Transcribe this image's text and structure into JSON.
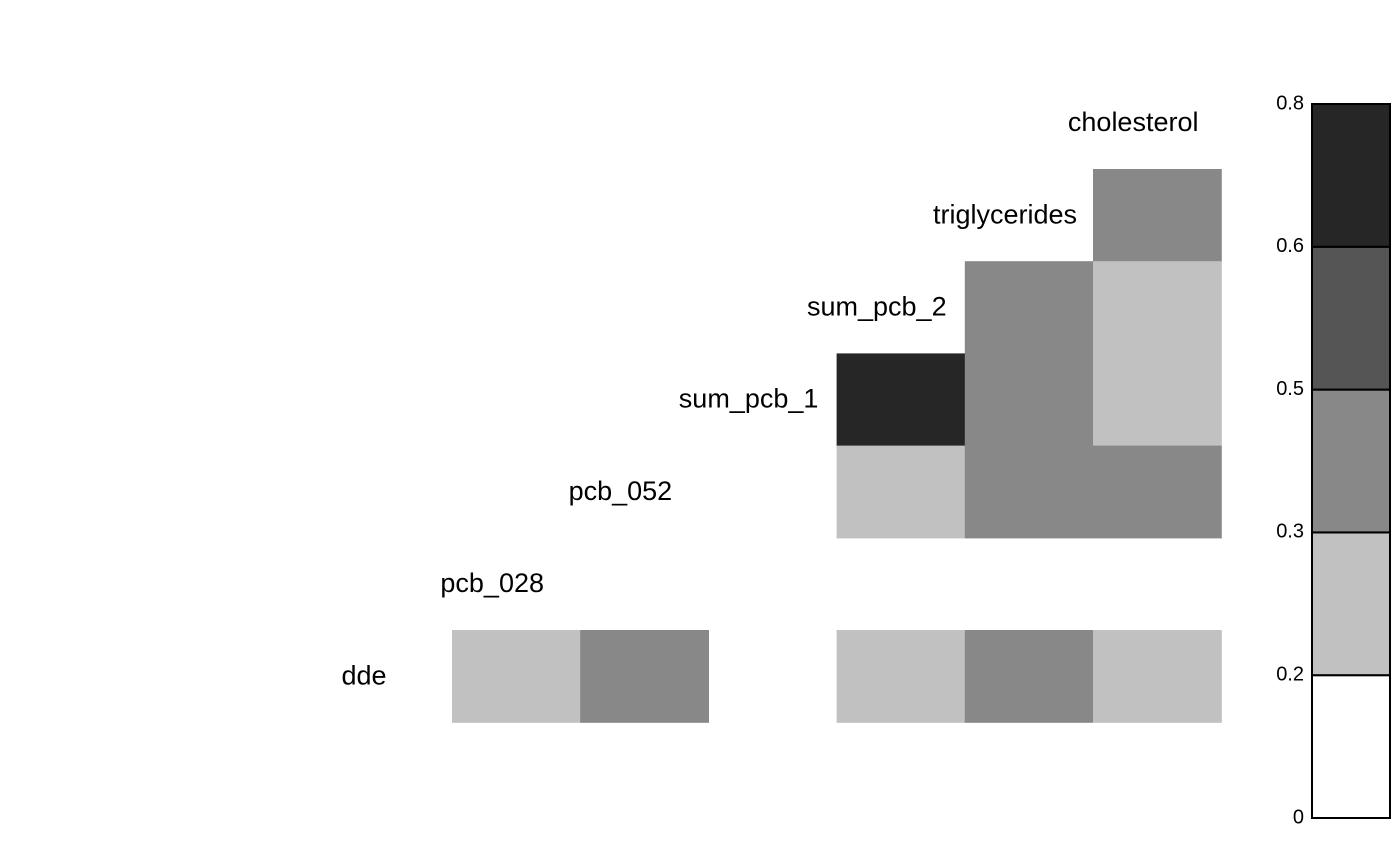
{
  "chart_data": {
    "type": "heatmap",
    "title": "",
    "variables": [
      "dde",
      "pcb_028",
      "pcb_052",
      "sum_pcb_1",
      "sum_pcb_2",
      "triglycerides",
      "cholesterol"
    ],
    "matrix_rows": [
      {
        "variable": "triglycerides",
        "values": [
          null,
          null,
          null,
          null,
          null,
          0.4
        ]
      },
      {
        "variable": "sum_pcb_2",
        "values": [
          null,
          null,
          null,
          null,
          0.4,
          0.25
        ]
      },
      {
        "variable": "sum_pcb_1",
        "values": [
          null,
          null,
          null,
          0.7,
          0.4,
          0.25
        ]
      },
      {
        "variable": "pcb_052",
        "values": [
          null,
          null,
          null,
          0.25,
          0.4,
          0.4
        ]
      },
      {
        "variable": "pcb_028",
        "values": [
          null,
          null,
          null,
          null,
          null,
          null
        ]
      },
      {
        "variable": "dde",
        "values": [
          0.25,
          0.4,
          null,
          0.25,
          0.4,
          0.25
        ]
      }
    ],
    "colorbar": {
      "breaks": [
        0,
        0.2,
        0.3,
        0.5,
        0.6,
        0.8
      ],
      "colors": [
        "#ffffff",
        "#c1c1c1",
        "#888888",
        "#555555",
        "#262626"
      ],
      "tick_labels": [
        "0",
        "0.2",
        "0.3",
        "0.5",
        "0.6",
        "0.8"
      ],
      "placement": "right"
    }
  }
}
